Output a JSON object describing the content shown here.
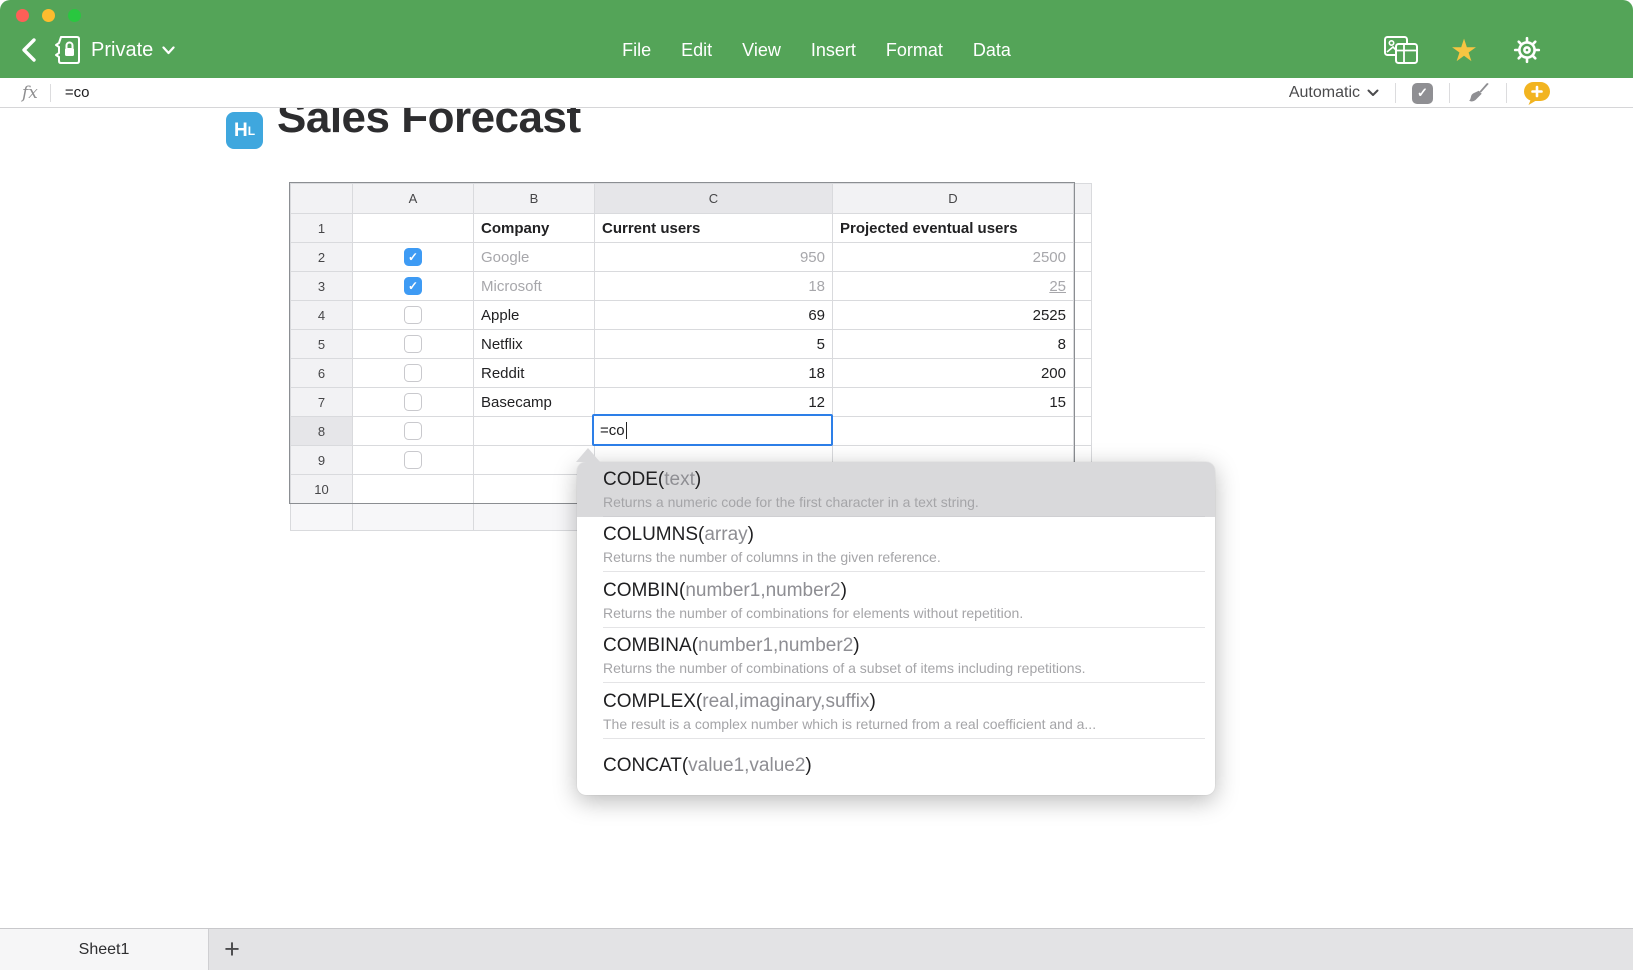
{
  "window": {
    "traffic_lights": {
      "close": "#ff5f57",
      "minimize": "#febc2e",
      "zoom": "#29c73f"
    }
  },
  "colors": {
    "toolbar_green": "#54a458",
    "doc_badge_blue": "#3fa7de",
    "checkbox_blue": "#3e9bf4",
    "edit_border_blue": "#2d7fe8",
    "star_gold": "#f6c542",
    "comment_yellow": "#f2b420"
  },
  "toolbar": {
    "location_label": "Private",
    "menus": [
      {
        "label": "File"
      },
      {
        "label": "Edit"
      },
      {
        "label": "View"
      },
      {
        "label": "Insert"
      },
      {
        "label": "Format"
      },
      {
        "label": "Data"
      }
    ]
  },
  "icons": {
    "star": "★",
    "check": "✓",
    "plus": "+"
  },
  "formula_bar": {
    "fx_label": "fx",
    "value": "=co",
    "recalc_mode": "Automatic"
  },
  "document": {
    "badge_text_big": "H",
    "badge_text_small": "L",
    "title": "Sales Forecast"
  },
  "sheet": {
    "columns": [
      "A",
      "B",
      "C",
      "D"
    ],
    "active_column": "C",
    "active_row": "8",
    "rows": [
      {
        "n": "1",
        "checkbox": null,
        "cells": {
          "b": "Company",
          "c": "Current users",
          "d": "Projected eventual users"
        },
        "style": "header"
      },
      {
        "n": "2",
        "checkbox": "checked",
        "cells": {
          "b": "Google",
          "c": "950",
          "d": "2500"
        },
        "style": "muted"
      },
      {
        "n": "3",
        "checkbox": "checked",
        "cells": {
          "b": "Microsoft",
          "c": "18",
          "d": "25"
        },
        "style": "muted",
        "d_underline": true
      },
      {
        "n": "4",
        "checkbox": "unchecked",
        "cells": {
          "b": "Apple",
          "c": "69",
          "d": "2525"
        }
      },
      {
        "n": "5",
        "checkbox": "unchecked",
        "cells": {
          "b": "Netflix",
          "c": "5",
          "d": "8"
        }
      },
      {
        "n": "6",
        "checkbox": "unchecked",
        "cells": {
          "b": "Reddit",
          "c": "18",
          "d": "200"
        }
      },
      {
        "n": "7",
        "checkbox": "unchecked",
        "cells": {
          "b": "Basecamp",
          "c": "12",
          "d": "15"
        }
      },
      {
        "n": "8",
        "checkbox": "unchecked",
        "cells": {
          "b": "",
          "c": "",
          "d": ""
        },
        "editing": "c"
      },
      {
        "n": "9",
        "checkbox": "unchecked",
        "cells": {
          "b": "",
          "c": "",
          "d": ""
        }
      },
      {
        "n": "10",
        "checkbox": null,
        "cells": {
          "b": "",
          "c": "",
          "d": ""
        }
      }
    ],
    "cell_editor": {
      "value": "=co"
    }
  },
  "autocomplete": {
    "paren_open": "(",
    "paren_close": ")",
    "items": [
      {
        "name": "CODE",
        "args": "text",
        "desc": "Returns a numeric code for the first character in a text string.",
        "selected": true
      },
      {
        "name": "COLUMNS",
        "args": "array",
        "desc": "Returns the number of columns in the given reference."
      },
      {
        "name": "COMBIN",
        "args": "number1,number2",
        "desc": "Returns the number of combinations for elements without repetition."
      },
      {
        "name": "COMBINA",
        "args": "number1,number2",
        "desc": "Returns the number of combinations of a subset of items including repetitions."
      },
      {
        "name": "COMPLEX",
        "args": "real,imaginary,suffix",
        "desc": "The result is a complex number which is returned from a real coefficient and a..."
      },
      {
        "name": "CONCAT",
        "args": "value1,value2",
        "desc": ""
      }
    ]
  },
  "sheet_tabs": {
    "tabs": [
      {
        "label": "Sheet1",
        "active": true
      }
    ],
    "add_label": "+"
  }
}
